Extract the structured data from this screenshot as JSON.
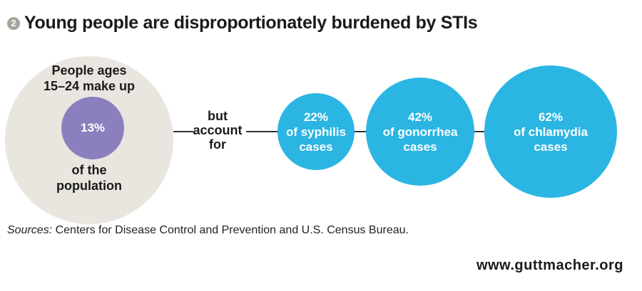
{
  "title_badge": "2",
  "title": "Young people are disproportionately burdened by STIs",
  "population": {
    "top_line1": "People ages",
    "top_line2": "15–24 make up",
    "value": "13%",
    "bottom_line1": "of the",
    "bottom_line2": "population"
  },
  "connector": {
    "line1": "but",
    "line2": "account",
    "line3": "for"
  },
  "chart_data": {
    "type": "bubble",
    "title": "Young people are disproportionately burdened by STIs",
    "population_share": {
      "label": "People ages 15–24 make up 13% of the population",
      "value": 13
    },
    "categories": [
      "syphilis",
      "gonorrhea",
      "chlamydia"
    ],
    "values": [
      22,
      42,
      62
    ],
    "unit": "%",
    "labels": [
      {
        "pct": "22%",
        "line1": "of syphilis",
        "line2": "cases"
      },
      {
        "pct": "42%",
        "line1": "of gonorrhea",
        "line2": "cases"
      },
      {
        "pct": "62%",
        "line1": "of chlamydia",
        "line2": "cases"
      }
    ],
    "colors": {
      "population": "#e9e6e0",
      "population_share": "#8b80bd",
      "sti": "#2bb5e3"
    }
  },
  "sources_label": "Sources:",
  "sources_text": " Centers for Disease Control and Prevention and U.S. Census Bureau.",
  "url": "www.guttmacher.org"
}
